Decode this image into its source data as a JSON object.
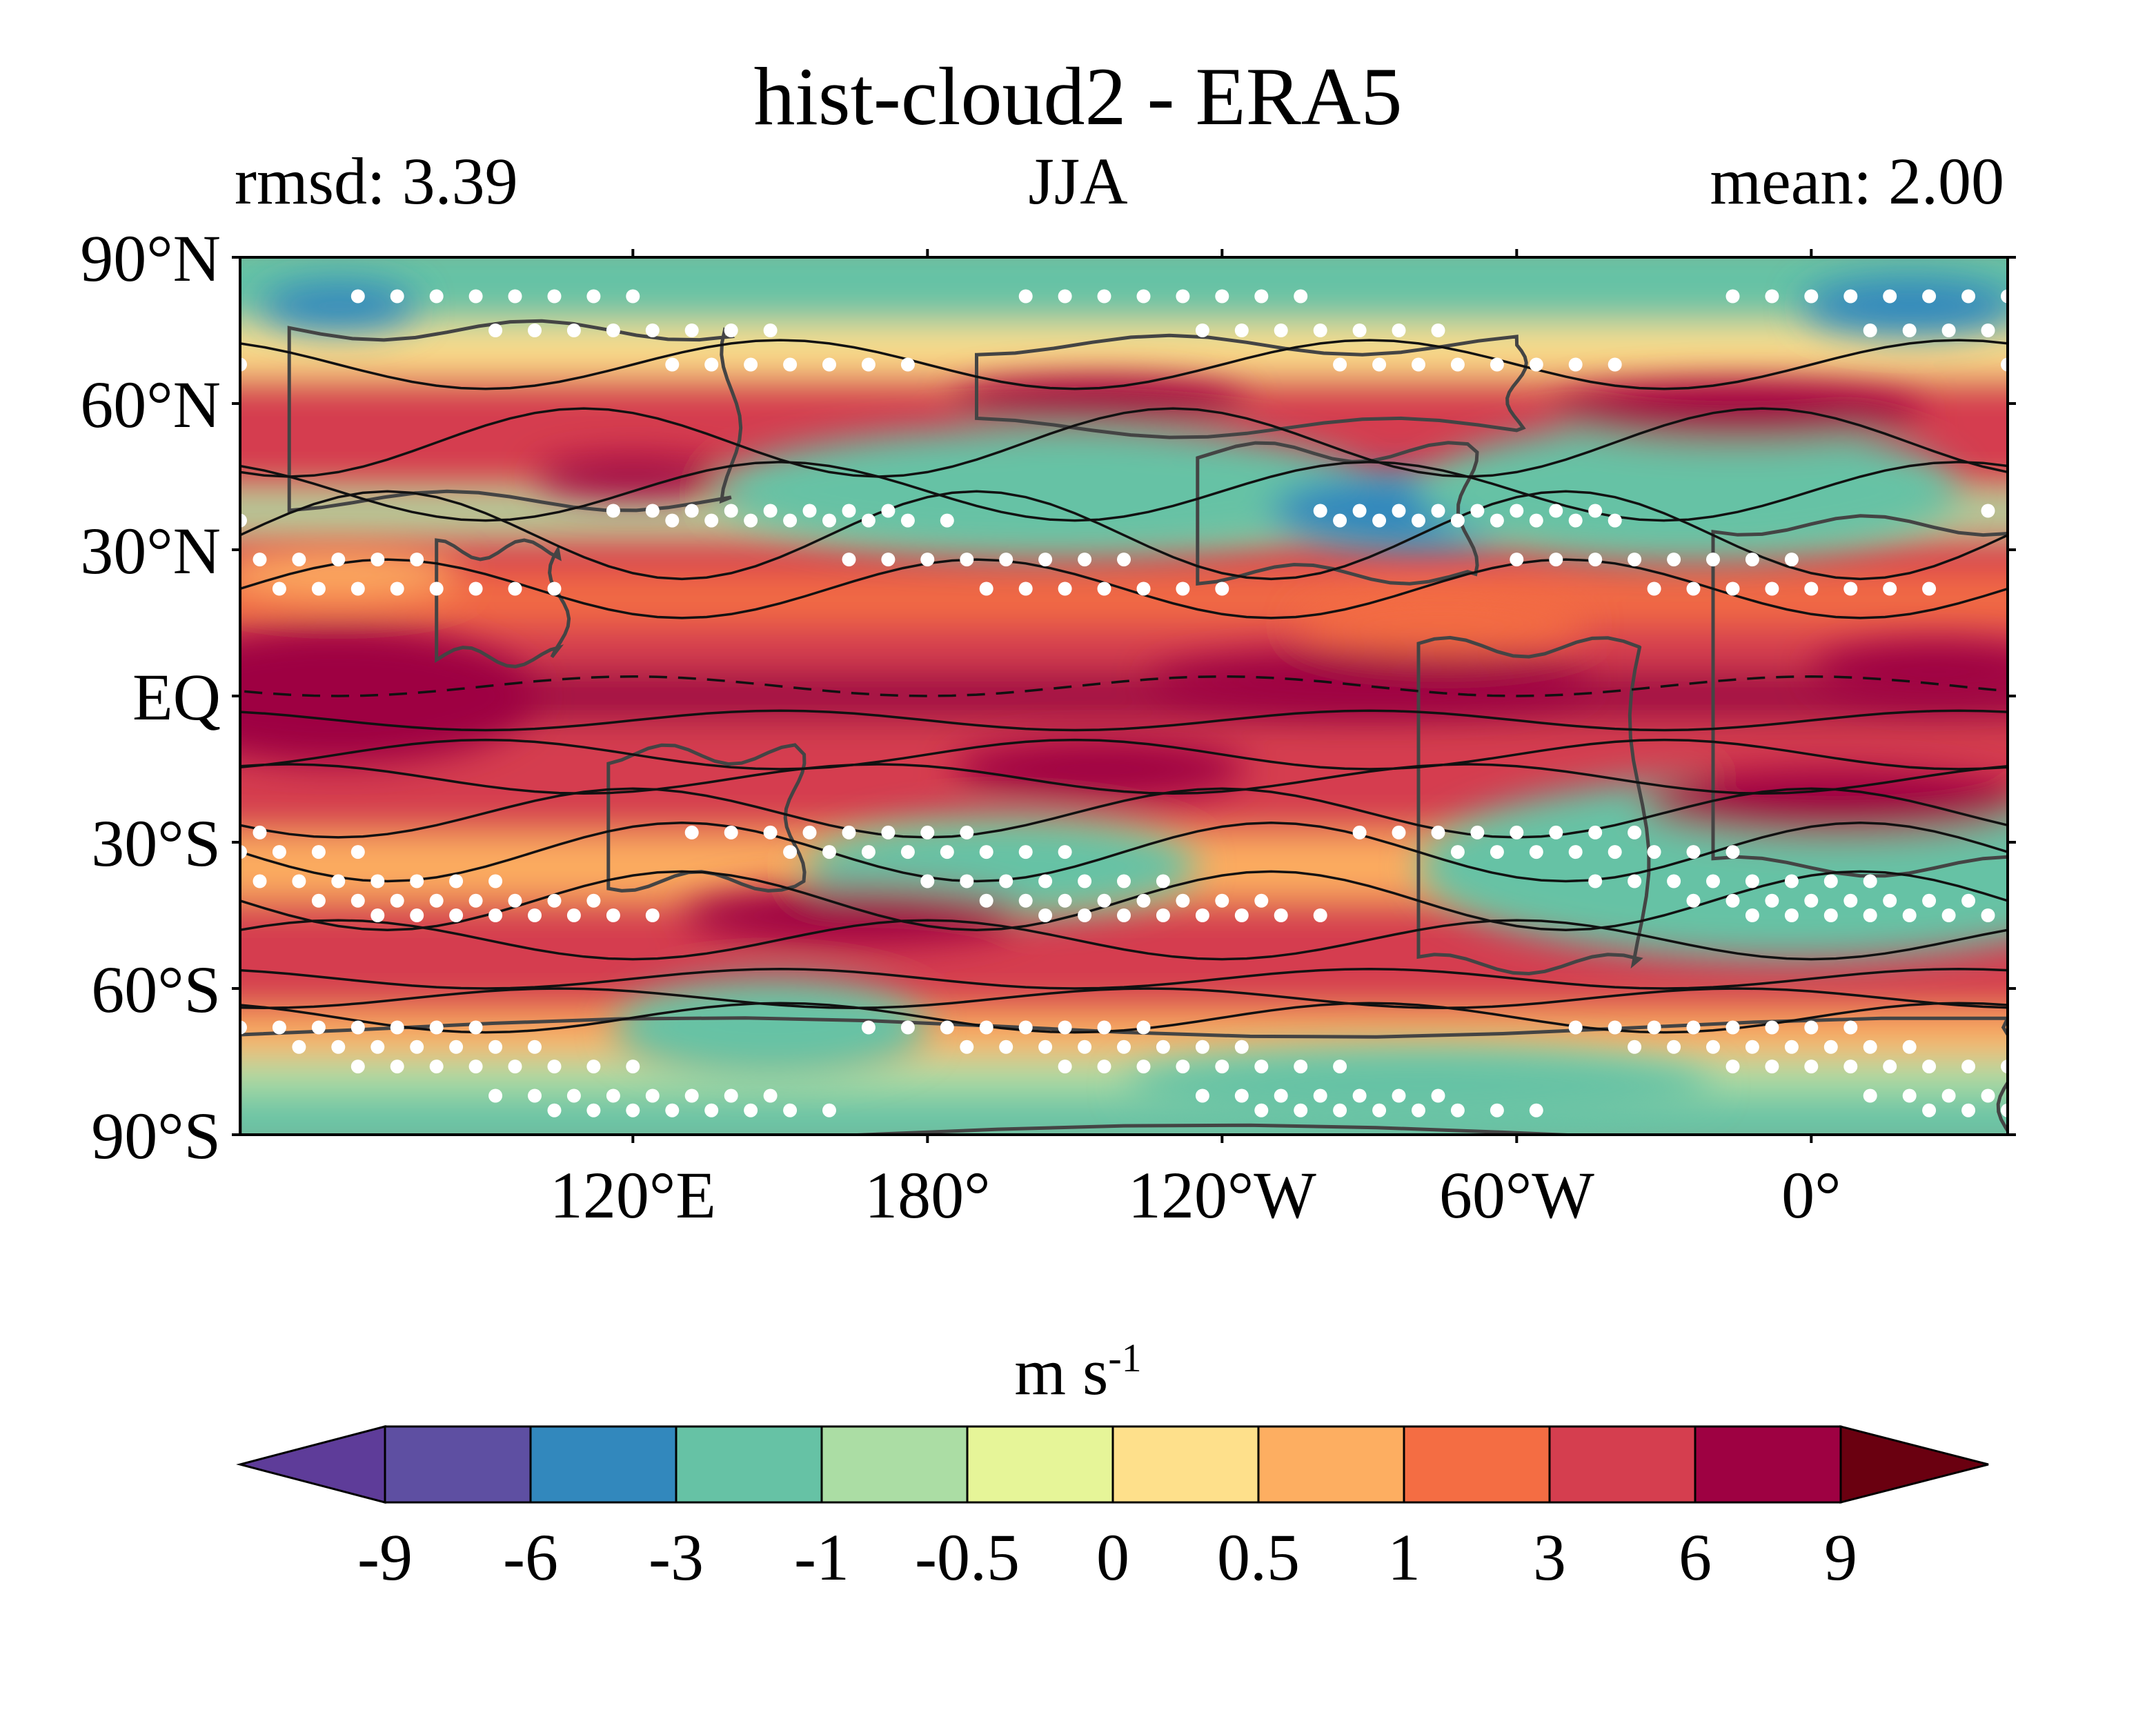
{
  "title": "hist-cloud2 - ERA5",
  "subtitle_left": "rmsd: 3.39",
  "subtitle_center": "JJA",
  "subtitle_right": "mean: 2.00",
  "colorbar": {
    "unit_base": "m s",
    "unit_exp": "-1",
    "boundaries": [
      "-9",
      "-6",
      "-3",
      "-1",
      "-0.5",
      "0",
      "0.5",
      "1",
      "3",
      "6",
      "9"
    ],
    "colors": [
      "#5e3c99",
      "#5e4fa2",
      "#3288bd",
      "#66c2a5",
      "#abdda4",
      "#e6f598",
      "#fee08b",
      "#fdae61",
      "#f46d43",
      "#d53e4f",
      "#9e0142",
      "#6a0010"
    ],
    "extend": "both"
  },
  "chart_data": {
    "type": "heatmap",
    "title": "hist-cloud2 - ERA5",
    "annotations": [
      "rmsd: 3.39",
      "JJA",
      "mean: 2.00"
    ],
    "projection": "PlateCarree, central longitude 40°E",
    "x_ticks": [
      {
        "lon": 120,
        "label": "120°E"
      },
      {
        "lon": 180,
        "label": "180°"
      },
      {
        "lon": 240,
        "label": "120°W"
      },
      {
        "lon": 300,
        "label": "60°W"
      },
      {
        "lon": 360,
        "label": "0°"
      }
    ],
    "y_ticks": [
      {
        "lat": 90,
        "label": "90°N"
      },
      {
        "lat": 60,
        "label": "60°N"
      },
      {
        "lat": 30,
        "label": "30°N"
      },
      {
        "lat": 0,
        "label": "EQ"
      },
      {
        "lat": -30,
        "label": "30°S"
      },
      {
        "lat": -60,
        "label": "60°S"
      },
      {
        "lat": -90,
        "label": "90°S"
      }
    ],
    "xlim": [
      40,
      400
    ],
    "ylim": [
      -90,
      90
    ],
    "zonal_bands": [
      {
        "lat": 80,
        "level": 3
      },
      {
        "lat": 72,
        "level": 6
      },
      {
        "lat": 60,
        "level": 9
      },
      {
        "lat": 45,
        "level": 9
      },
      {
        "lat": 38,
        "level": 4
      },
      {
        "lat": 30,
        "level": 9
      },
      {
        "lat": 20,
        "level": 8
      },
      {
        "lat": 10,
        "level": 9
      },
      {
        "lat": 0,
        "level": 10
      },
      {
        "lat": -10,
        "level": 9
      },
      {
        "lat": -22,
        "level": 9
      },
      {
        "lat": -35,
        "level": 7
      },
      {
        "lat": -48,
        "level": 9
      },
      {
        "lat": -60,
        "level": 9
      },
      {
        "lat": -70,
        "level": 7
      },
      {
        "lat": -78,
        "level": 4
      },
      {
        "lat": -86,
        "level": 3
      }
    ],
    "anomalies": [
      {
        "lon": 60,
        "lat": 0,
        "rlon": 25,
        "rlat": 9,
        "level": 11
      },
      {
        "lon": 60,
        "lat": 0,
        "rlon": 40,
        "rlat": 14,
        "level": 10
      },
      {
        "lon": 60,
        "lat": 80,
        "rlon": 16,
        "rlat": 5,
        "level": 2
      },
      {
        "lon": 380,
        "lat": 80,
        "rlon": 22,
        "rlat": 6,
        "level": 2
      },
      {
        "lon": 205,
        "lat": 42,
        "rlon": 48,
        "rlat": 8,
        "level": 2
      },
      {
        "lon": 205,
        "lat": 42,
        "rlon": 68,
        "rlat": 13,
        "level": 3
      },
      {
        "lon": 280,
        "lat": 38,
        "rlon": 30,
        "rlat": 8,
        "level": 2
      },
      {
        "lon": 335,
        "lat": 42,
        "rlon": 40,
        "rlat": 10,
        "level": 2
      },
      {
        "lon": 335,
        "lat": 42,
        "rlon": 55,
        "rlat": 14,
        "level": 3
      },
      {
        "lon": 355,
        "lat": -35,
        "rlon": 40,
        "rlat": 9,
        "level": 1
      },
      {
        "lon": 355,
        "lat": -35,
        "rlon": 60,
        "rlat": 14,
        "level": 2
      },
      {
        "lon": 355,
        "lat": -35,
        "rlon": 75,
        "rlat": 19,
        "level": 3
      },
      {
        "lon": 195,
        "lat": -35,
        "rlon": 40,
        "rlat": 10,
        "level": 3
      },
      {
        "lon": 148,
        "lat": -68,
        "rlon": 18,
        "rlat": 6,
        "level": 2
      },
      {
        "lon": 148,
        "lat": -68,
        "rlon": 32,
        "rlat": 10,
        "level": 3
      },
      {
        "lon": 280,
        "lat": -80,
        "rlon": 60,
        "rlat": 8,
        "level": 3
      },
      {
        "lon": 215,
        "lat": 60,
        "rlon": 30,
        "rlat": 5,
        "level": 10
      },
      {
        "lon": 345,
        "lat": 58,
        "rlon": 38,
        "rlat": 6,
        "level": 10
      },
      {
        "lon": 270,
        "lat": 3,
        "rlon": 45,
        "rlat": 6,
        "level": 10
      },
      {
        "lon": 385,
        "lat": 5,
        "rlon": 25,
        "rlat": 6,
        "level": 10
      },
      {
        "lon": 215,
        "lat": -15,
        "rlon": 30,
        "rlat": 6,
        "level": 10
      },
      {
        "lon": 365,
        "lat": -22,
        "rlon": 40,
        "rlat": 7,
        "level": 10
      },
      {
        "lon": 165,
        "lat": -45,
        "rlon": 35,
        "rlat": 6,
        "level": 10
      },
      {
        "lon": 120,
        "lat": 45,
        "rlon": 20,
        "rlat": 4,
        "level": 10
      },
      {
        "lon": 60,
        "lat": 25,
        "rlon": 25,
        "rlat": 5,
        "level": 7
      },
      {
        "lon": 285,
        "lat": 15,
        "rlon": 30,
        "rlat": 6,
        "level": 8
      }
    ],
    "contours": [
      {
        "lat": 68,
        "amp": 5,
        "phase": 0,
        "dashed": false
      },
      {
        "lat": 52,
        "amp": 7,
        "phase": 40,
        "dashed": false
      },
      {
        "lat": 42,
        "amp": 6,
        "phase": 120,
        "dashed": false
      },
      {
        "lat": 33,
        "amp": 9,
        "phase": 200,
        "dashed": false
      },
      {
        "lat": 22,
        "amp": 6,
        "phase": 80,
        "dashed": false
      },
      {
        "lat": -5,
        "amp": 2,
        "phase": 0,
        "dashed": false
      },
      {
        "lat": -12,
        "amp": 3,
        "phase": 60,
        "dashed": false
      },
      {
        "lat": -17,
        "amp": 3,
        "phase": 100,
        "dashed": false
      },
      {
        "lat": -24,
        "amp": 5,
        "phase": 150,
        "dashed": false
      },
      {
        "lat": -32,
        "amp": 6,
        "phase": 20,
        "dashed": false
      },
      {
        "lat": -42,
        "amp": 6,
        "phase": 260,
        "dashed": false
      },
      {
        "lat": -50,
        "amp": 4,
        "phase": 90,
        "dashed": false
      },
      {
        "lat": -58,
        "amp": 2,
        "phase": 0,
        "dashed": false
      },
      {
        "lat": -62,
        "amp": 2,
        "phase": 45,
        "dashed": false
      },
      {
        "lat": -66,
        "amp": 3,
        "phase": 120,
        "dashed": false
      },
      {
        "lat": 2,
        "amp": 2,
        "phase": 30,
        "dashed": true
      }
    ],
    "stipple_lats": [
      82,
      75,
      68,
      38,
      36,
      28,
      22,
      -28,
      -32,
      -38,
      -42,
      -45,
      -68,
      -72,
      -76,
      -82,
      -85
    ],
    "coast_rects": [
      {
        "lon0": 50,
        "lat0": 40,
        "lon1": 140,
        "lat1": 75
      },
      {
        "lon0": 80,
        "lat0": 8,
        "lon1": 105,
        "lat1": 30
      },
      {
        "lon0": 115,
        "lat0": -38,
        "lon1": 153,
        "lat1": -12
      },
      {
        "lon0": 190,
        "lat0": 55,
        "lon1": 300,
        "lat1": 72
      },
      {
        "lon0": 235,
        "lat0": 25,
        "lon1": 290,
        "lat1": 50
      },
      {
        "lon0": 280,
        "lat0": -55,
        "lon1": 325,
        "lat1": 10
      },
      {
        "lon0": 340,
        "lat0": -35,
        "lon1": 410,
        "lat1": 35
      },
      {
        "lon0": 40,
        "lat0": -90,
        "lon1": 400,
        "lat1": -68
      }
    ]
  }
}
